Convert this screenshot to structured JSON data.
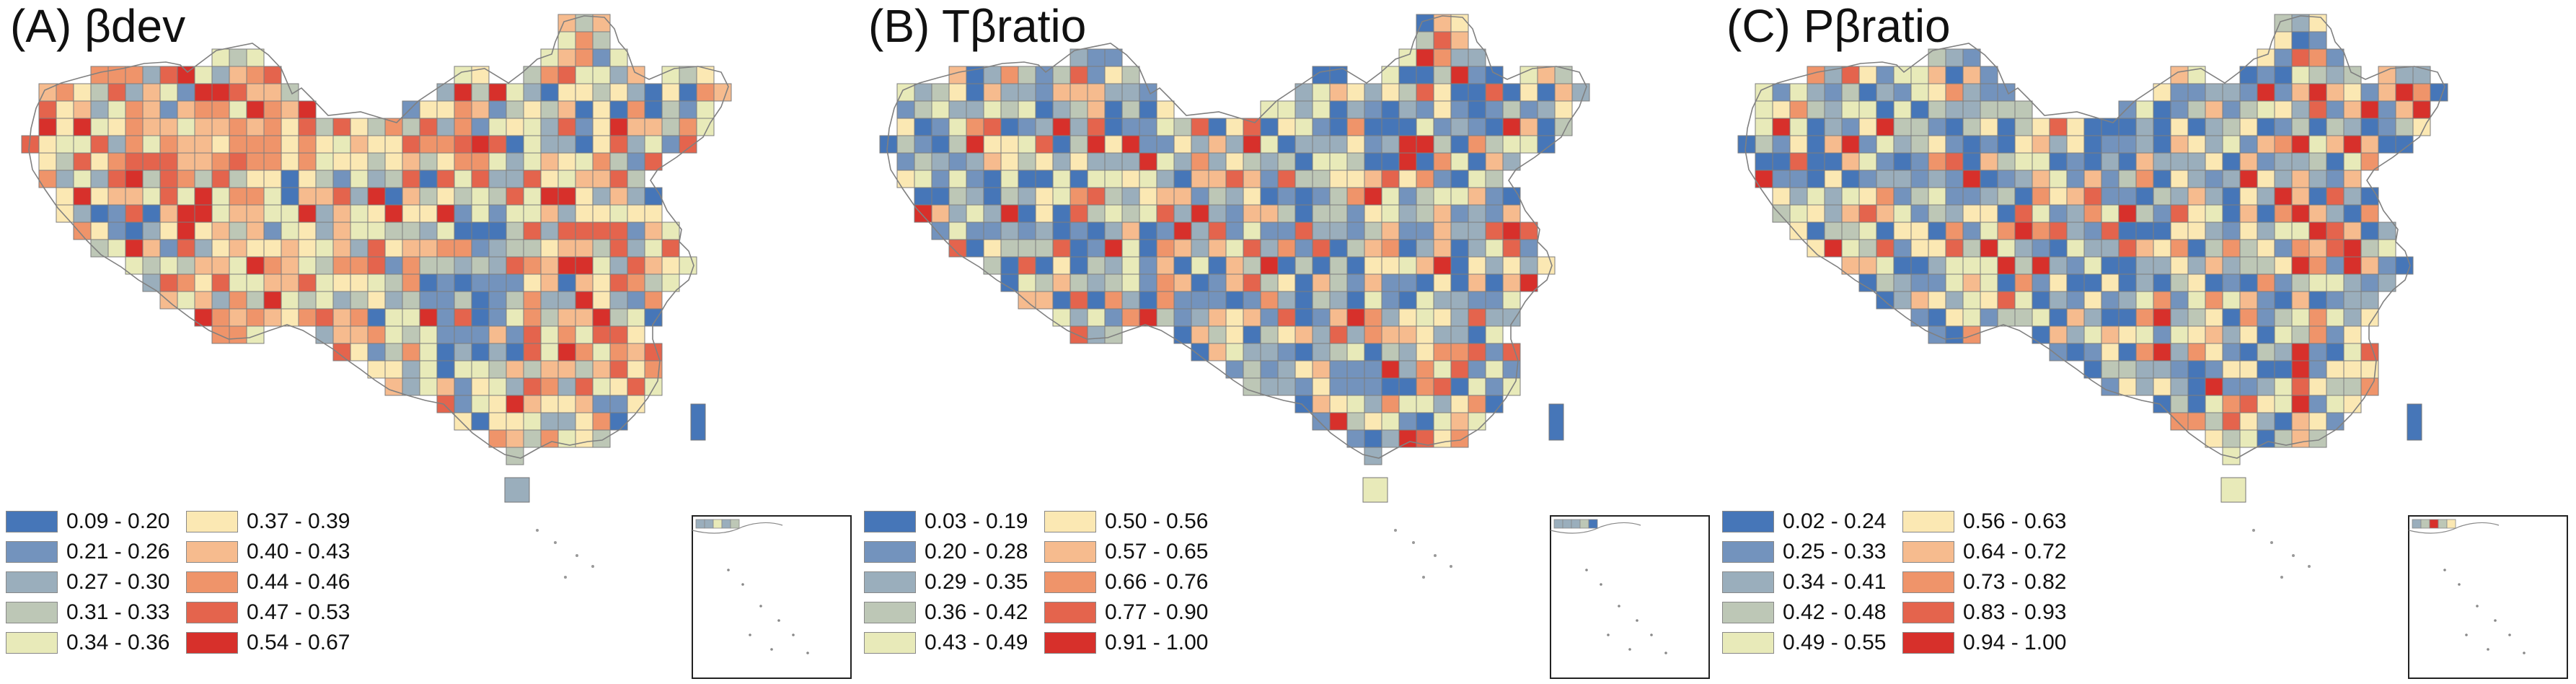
{
  "panels": [
    {
      "title": "(A) βdev",
      "legend": [
        {
          "label": "0.09 - 0.20",
          "color": "#4676b8"
        },
        {
          "label": "0.21 - 0.26",
          "color": "#7393bd"
        },
        {
          "label": "0.27 - 0.30",
          "color": "#9aaebc"
        },
        {
          "label": "0.31 - 0.33",
          "color": "#bdc7b6"
        },
        {
          "label": "0.34 - 0.36",
          "color": "#e8eab9"
        },
        {
          "label": "0.37 - 0.39",
          "color": "#fbe8b3"
        },
        {
          "label": "0.40 - 0.43",
          "color": "#f6bb8e"
        },
        {
          "label": "0.44 - 0.46",
          "color": "#ef946a"
        },
        {
          "label": "0.47 - 0.53",
          "color": "#e4644d"
        },
        {
          "label": "0.54 - 0.67",
          "color": "#d7302b"
        }
      ]
    },
    {
      "title": "(B) Tβratio",
      "legend": [
        {
          "label": "0.03 - 0.19",
          "color": "#4676b8"
        },
        {
          "label": "0.20 - 0.28",
          "color": "#7393bd"
        },
        {
          "label": "0.29 - 0.35",
          "color": "#9aaebc"
        },
        {
          "label": "0.36 - 0.42",
          "color": "#bdc7b6"
        },
        {
          "label": "0.43 - 0.49",
          "color": "#e8eab9"
        },
        {
          "label": "0.50 - 0.56",
          "color": "#fbe8b3"
        },
        {
          "label": "0.57 - 0.65",
          "color": "#f6bb8e"
        },
        {
          "label": "0.66 - 0.76",
          "color": "#ef946a"
        },
        {
          "label": "0.77 - 0.90",
          "color": "#e4644d"
        },
        {
          "label": "0.91 - 1.00",
          "color": "#d7302b"
        }
      ]
    },
    {
      "title": "(C) Pβratio",
      "legend": [
        {
          "label": "0.02 - 0.24",
          "color": "#4676b8"
        },
        {
          "label": "0.25 - 0.33",
          "color": "#7393bd"
        },
        {
          "label": "0.34 - 0.41",
          "color": "#9aaebc"
        },
        {
          "label": "0.42 - 0.48",
          "color": "#bdc7b6"
        },
        {
          "label": "0.49 - 0.55",
          "color": "#e8eab9"
        },
        {
          "label": "0.56 - 0.63",
          "color": "#fbe8b3"
        },
        {
          "label": "0.64 - 0.72",
          "color": "#f6bb8e"
        },
        {
          "label": "0.73 - 0.82",
          "color": "#ef946a"
        },
        {
          "label": "0.83 - 0.93",
          "color": "#e4644d"
        },
        {
          "label": "0.94 - 1.00",
          "color": "#d7302b"
        }
      ]
    }
  ]
}
